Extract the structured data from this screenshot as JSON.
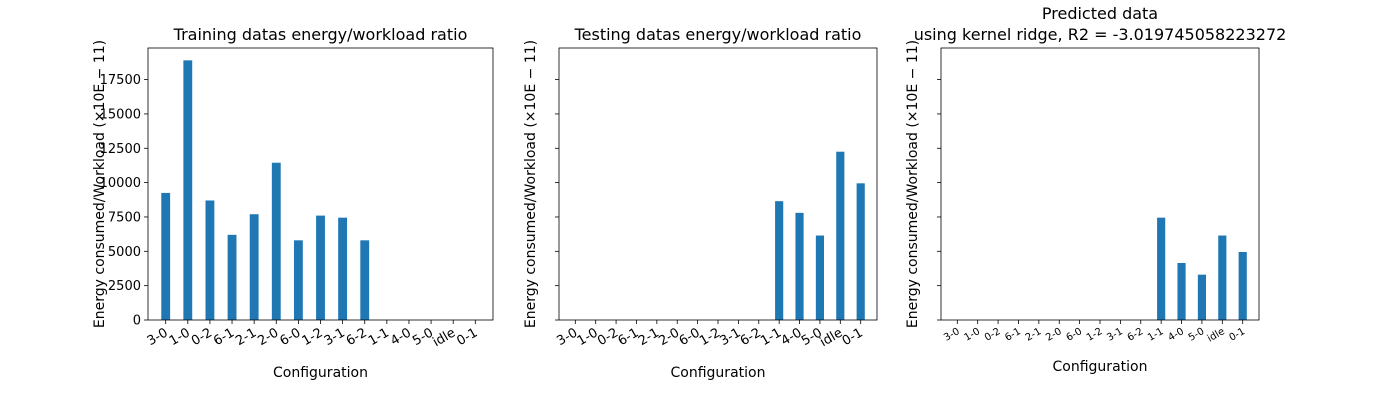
{
  "chart_data": [
    {
      "type": "bar",
      "title": [
        "Training datas energy/workload ratio"
      ],
      "xlabel": "Configuration",
      "ylabel": "Energy consumed/Workload (×10E − 11)",
      "categories": [
        "3-0",
        "1-0",
        "0-2",
        "6-1",
        "2-1",
        "2-0",
        "6-0",
        "1-2",
        "3-1",
        "6-2",
        "1-1",
        "4-0",
        "5-0",
        "idle",
        "0-1"
      ],
      "values": [
        9250,
        18900,
        8700,
        6200,
        7700,
        11450,
        5800,
        7600,
        7450,
        5800,
        null,
        null,
        null,
        null,
        null
      ],
      "ylim": [
        0,
        19800
      ],
      "yticks": [
        "0",
        "2500",
        "5000",
        "7500",
        "10000",
        "12500",
        "15000",
        "17500"
      ],
      "show_ytick_labels": true,
      "xtick_rotation": 30,
      "bar_color": "#1f77b4"
    },
    {
      "type": "bar",
      "title": [
        "Testing datas energy/workload ratio"
      ],
      "xlabel": "Configuration",
      "ylabel": "Energy consumed/Workload (×10E − 11)",
      "categories": [
        "3-0",
        "1-0",
        "0-2",
        "6-1",
        "2-1",
        "2-0",
        "6-0",
        "1-2",
        "3-1",
        "6-2",
        "1-1",
        "4-0",
        "5-0",
        "idle",
        "0-1"
      ],
      "values": [
        null,
        null,
        null,
        null,
        null,
        null,
        null,
        null,
        null,
        null,
        8650,
        7800,
        6150,
        12250,
        9950
      ],
      "ylim": [
        0,
        19800
      ],
      "yticks": [
        "0",
        "2500",
        "5000",
        "7500",
        "10000",
        "12500",
        "15000",
        "17500"
      ],
      "show_ytick_labels": false,
      "xtick_rotation": 30,
      "bar_color": "#1f77b4"
    },
    {
      "type": "bar",
      "title": [
        "Predicted data",
        "using kernel ridge, R2 = -3.019745058223272"
      ],
      "xlabel": "Configuration",
      "ylabel": "Energy consumed/Workload (×10E − 11)",
      "categories": [
        "3-0",
        "1-0",
        "0-2",
        "6-1",
        "2-1",
        "2-0",
        "6-0",
        "1-2",
        "3-1",
        "6-2",
        "1-1",
        "4-0",
        "5-0",
        "idle",
        "0-1"
      ],
      "values": [
        null,
        null,
        null,
        null,
        null,
        null,
        null,
        null,
        null,
        null,
        7450,
        4150,
        3300,
        6150,
        4950
      ],
      "ylim": [
        0,
        19800
      ],
      "yticks": [
        "0",
        "2500",
        "5000",
        "7500",
        "10000",
        "12500",
        "15000",
        "17500"
      ],
      "show_ytick_labels": false,
      "xtick_rotation": 30,
      "xtick_small": true,
      "bar_color": "#1f77b4"
    }
  ]
}
